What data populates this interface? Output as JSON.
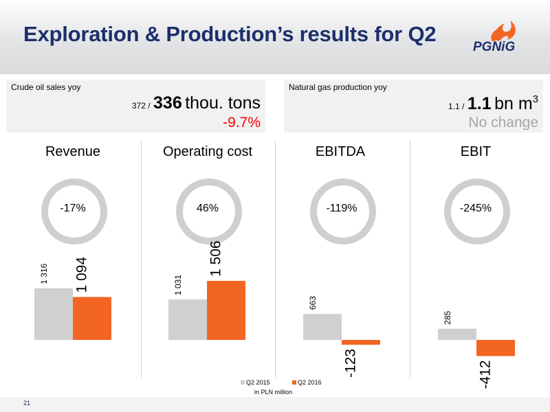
{
  "header": {
    "title": "Exploration & Production’s results for Q2",
    "logo_text": "PGNiG"
  },
  "kpis": [
    {
      "label": "Crude oil sales yoy",
      "prev": "372 /",
      "value": "336",
      "unit": "thou. tons",
      "unit_sup": "",
      "change": "-9.7%",
      "change_color": "#ff0000"
    },
    {
      "label": "Natural gas production yoy",
      "prev": "1.1 /",
      "value": "1.1",
      "unit": "bn m",
      "unit_sup": "3",
      "change": "No change",
      "change_color": "#a6a6a6"
    }
  ],
  "panels": [
    {
      "title": "Revenue",
      "change": "-17%"
    },
    {
      "title": "Operating cost",
      "change": "46%"
    },
    {
      "title": "EBITDA",
      "change": "-119%"
    },
    {
      "title": "EBIT",
      "change": "-245%"
    }
  ],
  "legend": {
    "series_2015": "Q2 2015",
    "series_2016": "Q2 2016",
    "unit_note": "in PLN million"
  },
  "page_number": "21",
  "colors": {
    "q2_2015": "#d0d0d0",
    "q2_2016": "#f26522",
    "title_blue": "#1c2f6b",
    "ring": "#cfcfcf"
  },
  "chart_data": [
    {
      "type": "bar",
      "title": "Revenue",
      "categories": [
        "Q2 2015",
        "Q2 2016"
      ],
      "values": [
        1316,
        1094
      ],
      "labels": [
        "1 316",
        "1 094"
      ],
      "change": "-17%"
    },
    {
      "type": "bar",
      "title": "Operating cost",
      "categories": [
        "Q2 2015",
        "Q2 2016"
      ],
      "values": [
        1031,
        1506
      ],
      "labels": [
        "1 031",
        "1 506"
      ],
      "change": "46%"
    },
    {
      "type": "bar",
      "title": "EBITDA",
      "categories": [
        "Q2 2015",
        "Q2 2016"
      ],
      "values": [
        663,
        -123
      ],
      "labels": [
        "663",
        "-123"
      ],
      "change": "-119%"
    },
    {
      "type": "bar",
      "title": "EBIT",
      "categories": [
        "Q2 2015",
        "Q2 2016"
      ],
      "values": [
        285,
        -412
      ],
      "labels": [
        "285",
        "-412"
      ],
      "change": "-245%"
    }
  ]
}
